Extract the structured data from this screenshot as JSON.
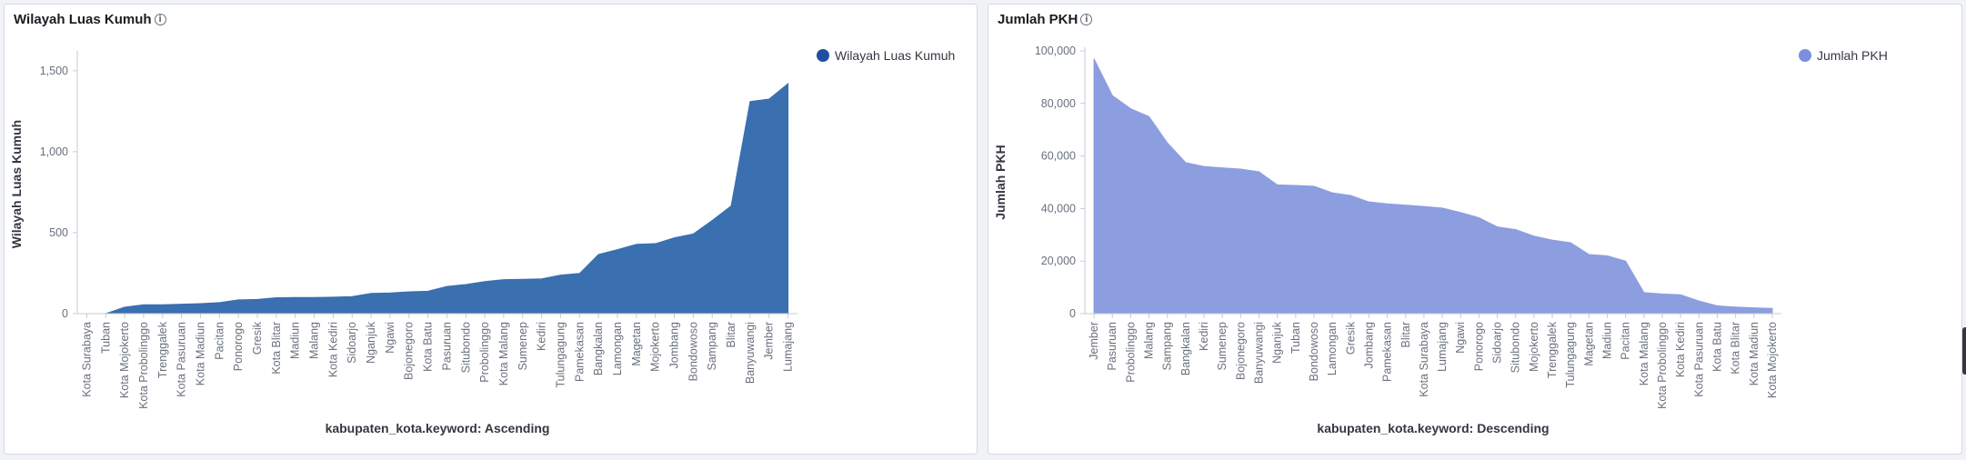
{
  "chart_data": [
    {
      "type": "area",
      "title": "Wilayah Luas Kumuh",
      "xlabel": "kabupaten_kota.keyword: Ascending",
      "ylabel": "Wilayah Luas Kumuh",
      "legend_position": "top-right",
      "color": "#3a6fb0",
      "legend_color": "#1f4fa0",
      "ylim": [
        0,
        1600
      ],
      "yticks": [
        0,
        500,
        1000,
        1500
      ],
      "ytick_labels": [
        "0",
        "500",
        "1,000",
        "1,500"
      ],
      "grid": false,
      "categories": [
        "Kota Surabaya",
        "Tuban",
        "Kota Mojokerto",
        "Kota Probolinggo",
        "Trenggalek",
        "Kota Pasuruan",
        "Kota Madiun",
        "Pacitan",
        "Ponorogo",
        "Gresik",
        "Kota Blitar",
        "Madiun",
        "Malang",
        "Kota Kediri",
        "Sidoarjo",
        "Nganjuk",
        "Ngawi",
        "Bojonegoro",
        "Kota Batu",
        "Pasuruan",
        "Situbondo",
        "Probolinggo",
        "Kota Malang",
        "Sumenep",
        "Kediri",
        "Tulungagung",
        "Pamekasan",
        "Bangkalan",
        "Lamongan",
        "Magetan",
        "Mojokerto",
        "Jombang",
        "Bondowoso",
        "Sampang",
        "Blitar",
        "Banyuwangi",
        "Jember",
        "Lumajang"
      ],
      "series": [
        {
          "name": "Wilayah Luas Kumuh",
          "values": [
            0,
            0,
            40,
            55,
            55,
            58,
            62,
            68,
            85,
            88,
            98,
            100,
            100,
            102,
            105,
            125,
            128,
            135,
            138,
            168,
            180,
            198,
            210,
            212,
            215,
            238,
            248,
            365,
            395,
            428,
            432,
            468,
            492,
            575,
            665,
            1310,
            1325,
            1420
          ]
        }
      ]
    },
    {
      "type": "area",
      "title": "Jumlah PKH",
      "xlabel": "kabupaten_kota.keyword: Descending",
      "ylabel": "Jumlah PKH",
      "legend_position": "top-right",
      "color": "#8c9ee0",
      "legend_color": "#7b8fdc",
      "ylim": [
        0,
        100000
      ],
      "yticks": [
        0,
        20000,
        40000,
        60000,
        80000,
        100000
      ],
      "ytick_labels": [
        "0",
        "20,000",
        "40,000",
        "60,000",
        "80,000",
        "100,000"
      ],
      "grid": false,
      "categories": [
        "Jember",
        "Pasuruan",
        "Probolinggo",
        "Malang",
        "Sampang",
        "Bangkalan",
        "Kediri",
        "Sumenep",
        "Bojonegoro",
        "Banyuwangi",
        "Nganjuk",
        "Tuban",
        "Bondowoso",
        "Lamongan",
        "Gresik",
        "Jombang",
        "Pamekasan",
        "Blitar",
        "Kota Surabaya",
        "Lumajang",
        "Ngawi",
        "Ponorogo",
        "Sidoarjo",
        "Situbondo",
        "Mojokerto",
        "Trenggalek",
        "Tulungagung",
        "Magetan",
        "Madiun",
        "Pacitan",
        "Kota Malang",
        "Kota Probolinggo",
        "Kota Kediri",
        "Kota Pasuruan",
        "Kota Batu",
        "Kota Blitar",
        "Kota Madiun",
        "Kota Mojokerto"
      ],
      "series": [
        {
          "name": "Jumlah PKH",
          "values": [
            97000,
            83000,
            78000,
            75000,
            65000,
            57500,
            56000,
            55500,
            55000,
            54000,
            49000,
            48800,
            48500,
            46000,
            45000,
            42500,
            41800,
            41300,
            40800,
            40200,
            38500,
            36500,
            33000,
            32000,
            29500,
            28000,
            27000,
            22500,
            22000,
            20000,
            8000,
            7500,
            7200,
            4800,
            3000,
            2500,
            2200,
            2000
          ]
        }
      ]
    }
  ]
}
